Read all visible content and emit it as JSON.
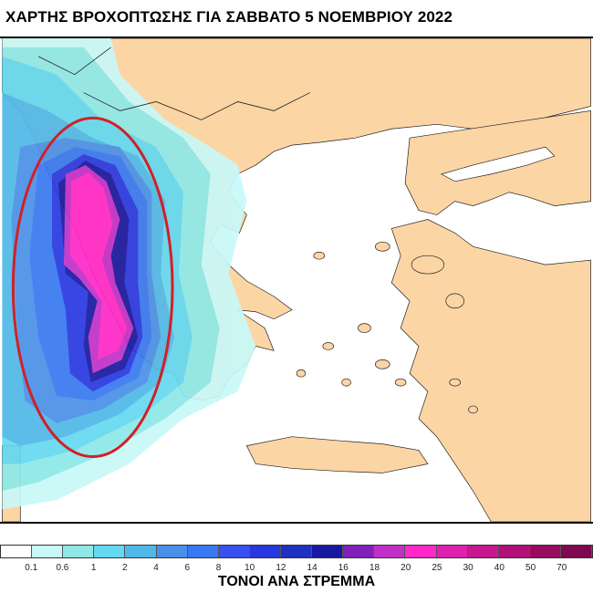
{
  "title": "ΧΑΡΤΗΣ ΒΡΟΧΟΠΤΩΣΗΣ ΓΙΑ ΣΑΒΒΑΤΟ 5 ΝΟΕΜΒΡΙΟΥ 2022",
  "map": {
    "land_color": "#fcd5a5",
    "sea_color": "#ffffff",
    "highlight_ellipse_color": "#d02028",
    "highlight_region": "western Greece / Ionian Sea"
  },
  "legend": {
    "unit": "ΤΟΝΟΙ ΑΝΑ ΣΤΡΕΜΜΑ",
    "ticks": [
      "0.1",
      "0.6",
      "1",
      "2",
      "4",
      "6",
      "8",
      "10",
      "12",
      "14",
      "16",
      "18",
      "20",
      "25",
      "30",
      "40",
      "50",
      "70"
    ],
    "colors": [
      "#ffffff",
      "#c8f8f8",
      "#8ee8e8",
      "#64d8f0",
      "#50b8e8",
      "#4a90e8",
      "#3878f0",
      "#3850f0",
      "#2838e0",
      "#2030c0",
      "#1818a0",
      "#8020b8",
      "#c030c8",
      "#ff28c8",
      "#e020b0",
      "#c81890",
      "#b01078",
      "#980c60",
      "#800850"
    ]
  }
}
